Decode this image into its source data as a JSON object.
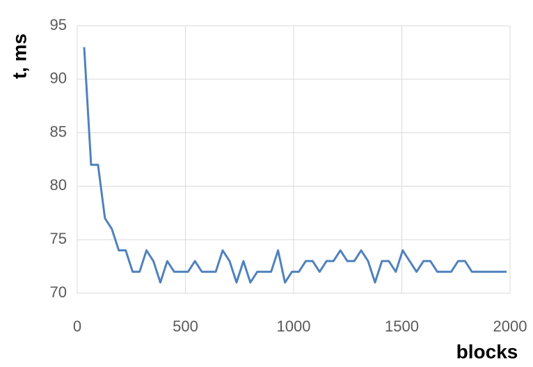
{
  "chart_data": {
    "type": "line",
    "x_label": "blocks",
    "y_label": "t, ms",
    "x": [
      32,
      64,
      96,
      128,
      160,
      192,
      224,
      256,
      288,
      320,
      352,
      384,
      416,
      448,
      480,
      512,
      544,
      576,
      608,
      640,
      672,
      704,
      736,
      768,
      800,
      832,
      864,
      896,
      928,
      960,
      992,
      1024,
      1056,
      1088,
      1120,
      1152,
      1184,
      1216,
      1248,
      1280,
      1312,
      1344,
      1376,
      1408,
      1440,
      1472,
      1504,
      1536,
      1568,
      1600,
      1632,
      1664,
      1696,
      1728,
      1760,
      1792,
      1824,
      1856,
      1888,
      1920,
      1952,
      1984
    ],
    "series": [
      {
        "color": "#4f81bd",
        "values": [
          93,
          82,
          82,
          77,
          76,
          74,
          74,
          72,
          72,
          74,
          73,
          71,
          73,
          72,
          72,
          72,
          73,
          72,
          72,
          72,
          74,
          73,
          71,
          73,
          71,
          72,
          72,
          72,
          74,
          71,
          72,
          72,
          73,
          73,
          72,
          73,
          73,
          74,
          73,
          73,
          74,
          73,
          71,
          73,
          73,
          72,
          74,
          73,
          72,
          73,
          73,
          72,
          72,
          72,
          73,
          73,
          72,
          72,
          72,
          72,
          72,
          72
        ]
      }
    ],
    "xlim": [
      0,
      2000
    ],
    "xticks": [
      0,
      500,
      1000,
      1500,
      2000
    ],
    "ylim": [
      70,
      95
    ],
    "yticks": [
      70,
      75,
      80,
      85,
      90,
      95
    ],
    "grid": true
  }
}
